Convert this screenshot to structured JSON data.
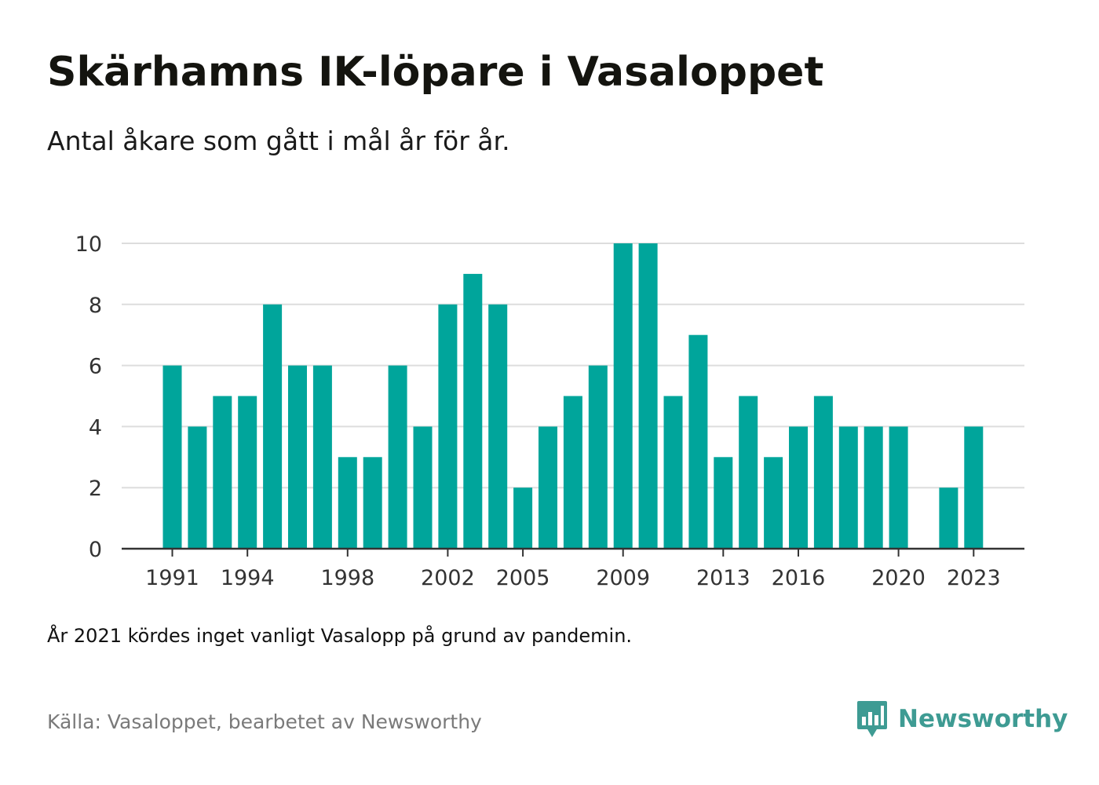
{
  "header": {
    "title": "Skärhamns IK-löpare i Vasaloppet",
    "subtitle": "Antal åkare som gått i mål år för år."
  },
  "footer": {
    "note": "År 2021 kördes inget vanligt Vasalopp på grund av pandemin.",
    "source": "Källa: Vasaloppet, bearbetet av Newsworthy",
    "brand": "Newsworthy"
  },
  "colors": {
    "bar": "#00a59b",
    "grid": "#dddddd",
    "axis": "#333333",
    "brand": "#3e9b93"
  },
  "chart_data": {
    "type": "bar",
    "title": "Skärhamns IK-löpare i Vasaloppet",
    "subtitle": "Antal åkare som gått i mål år för år.",
    "xlabel": "",
    "ylabel": "",
    "ylim": [
      0,
      10
    ],
    "yticks": [
      0,
      2,
      4,
      6,
      8,
      10
    ],
    "xticks": [
      1991,
      1994,
      1998,
      2002,
      2005,
      2009,
      2013,
      2016,
      2020,
      2023
    ],
    "grid": true,
    "legend": "none",
    "categories": [
      1991,
      1992,
      1993,
      1994,
      1995,
      1996,
      1997,
      1998,
      1999,
      2000,
      2001,
      2002,
      2003,
      2004,
      2005,
      2006,
      2007,
      2008,
      2009,
      2010,
      2011,
      2012,
      2013,
      2014,
      2015,
      2016,
      2017,
      2018,
      2019,
      2020,
      2021,
      2022,
      2023
    ],
    "values": [
      6,
      4,
      5,
      5,
      8,
      6,
      6,
      3,
      3,
      6,
      4,
      8,
      9,
      8,
      2,
      4,
      5,
      6,
      10,
      10,
      5,
      7,
      3,
      5,
      3,
      4,
      5,
      4,
      4,
      4,
      null,
      2,
      4
    ]
  }
}
